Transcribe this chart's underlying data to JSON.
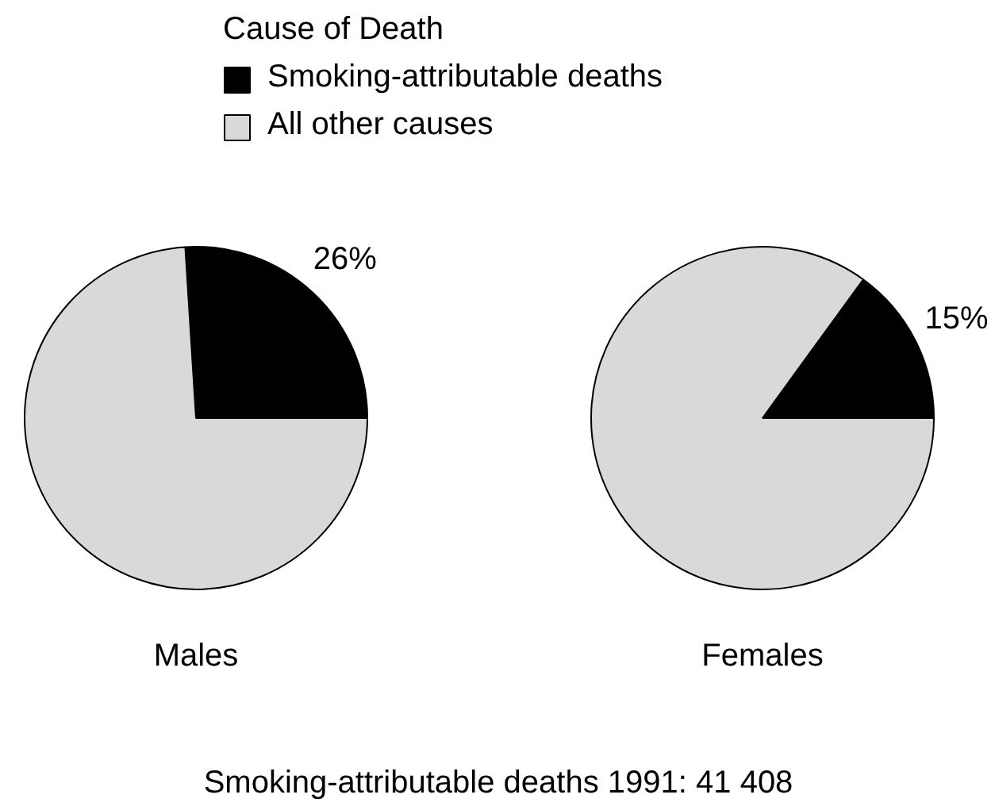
{
  "chart_data": [
    {
      "type": "pie",
      "title": "Males",
      "legend_title": "Cause of Death",
      "legend": "top",
      "categories": [
        "Smoking-attributable deaths",
        "All other causes"
      ],
      "values": [
        26,
        74
      ],
      "colors": [
        "#000000",
        "#d9d9d9"
      ],
      "value_labels": [
        "26%",
        null
      ],
      "annotations": [
        "Smoking-attributable deaths 1991: 41 408"
      ]
    },
    {
      "type": "pie",
      "title": "Females",
      "categories": [
        null,
        null
      ],
      "values": [
        15,
        85
      ],
      "colors": [
        "#000000",
        "#d9d9d9"
      ],
      "value_labels": [
        "15%",
        null
      ]
    }
  ]
}
